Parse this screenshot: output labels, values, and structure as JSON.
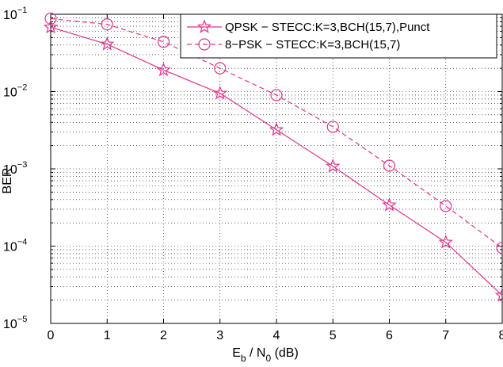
{
  "chart_data": {
    "type": "line",
    "title": "",
    "xlabel": {
      "base": "E",
      "sub1": "b",
      "mid": " / N",
      "sub2": "0",
      "tail": " (dB)"
    },
    "ylabel": "BER",
    "x": [
      0,
      1,
      2,
      3,
      4,
      5,
      6,
      7,
      8
    ],
    "xticks": [
      "0",
      "1",
      "2",
      "3",
      "4",
      "5",
      "6",
      "7",
      "8"
    ],
    "xlim": [
      0,
      8
    ],
    "ylim": [
      1e-05,
      0.1
    ],
    "yscale": "log",
    "yticks": [
      {
        "base": "10",
        "exp": "−5"
      },
      {
        "base": "10",
        "exp": "−4"
      },
      {
        "base": "10",
        "exp": "−3"
      },
      {
        "base": "10",
        "exp": "−2"
      },
      {
        "base": "10",
        "exp": "−1"
      }
    ],
    "grid": true,
    "legend_position": "top-right",
    "series": [
      {
        "name": "QPSK − STECC:K=3,BCH(15,7),Punct",
        "color": "#e0348c",
        "marker": "star",
        "linestyle": "solid",
        "values": [
          0.068,
          0.041,
          0.019,
          0.0095,
          0.0032,
          0.00108,
          0.00034,
          0.000112,
          2.3e-05
        ]
      },
      {
        "name": "8−PSK − STECC:K=3,BCH(15,7)",
        "color": "#e0348c",
        "marker": "circle",
        "linestyle": "dashed",
        "values": [
          0.088,
          0.074,
          0.044,
          0.02,
          0.009,
          0.0035,
          0.0011,
          0.00033,
          9.5e-05
        ]
      }
    ]
  }
}
